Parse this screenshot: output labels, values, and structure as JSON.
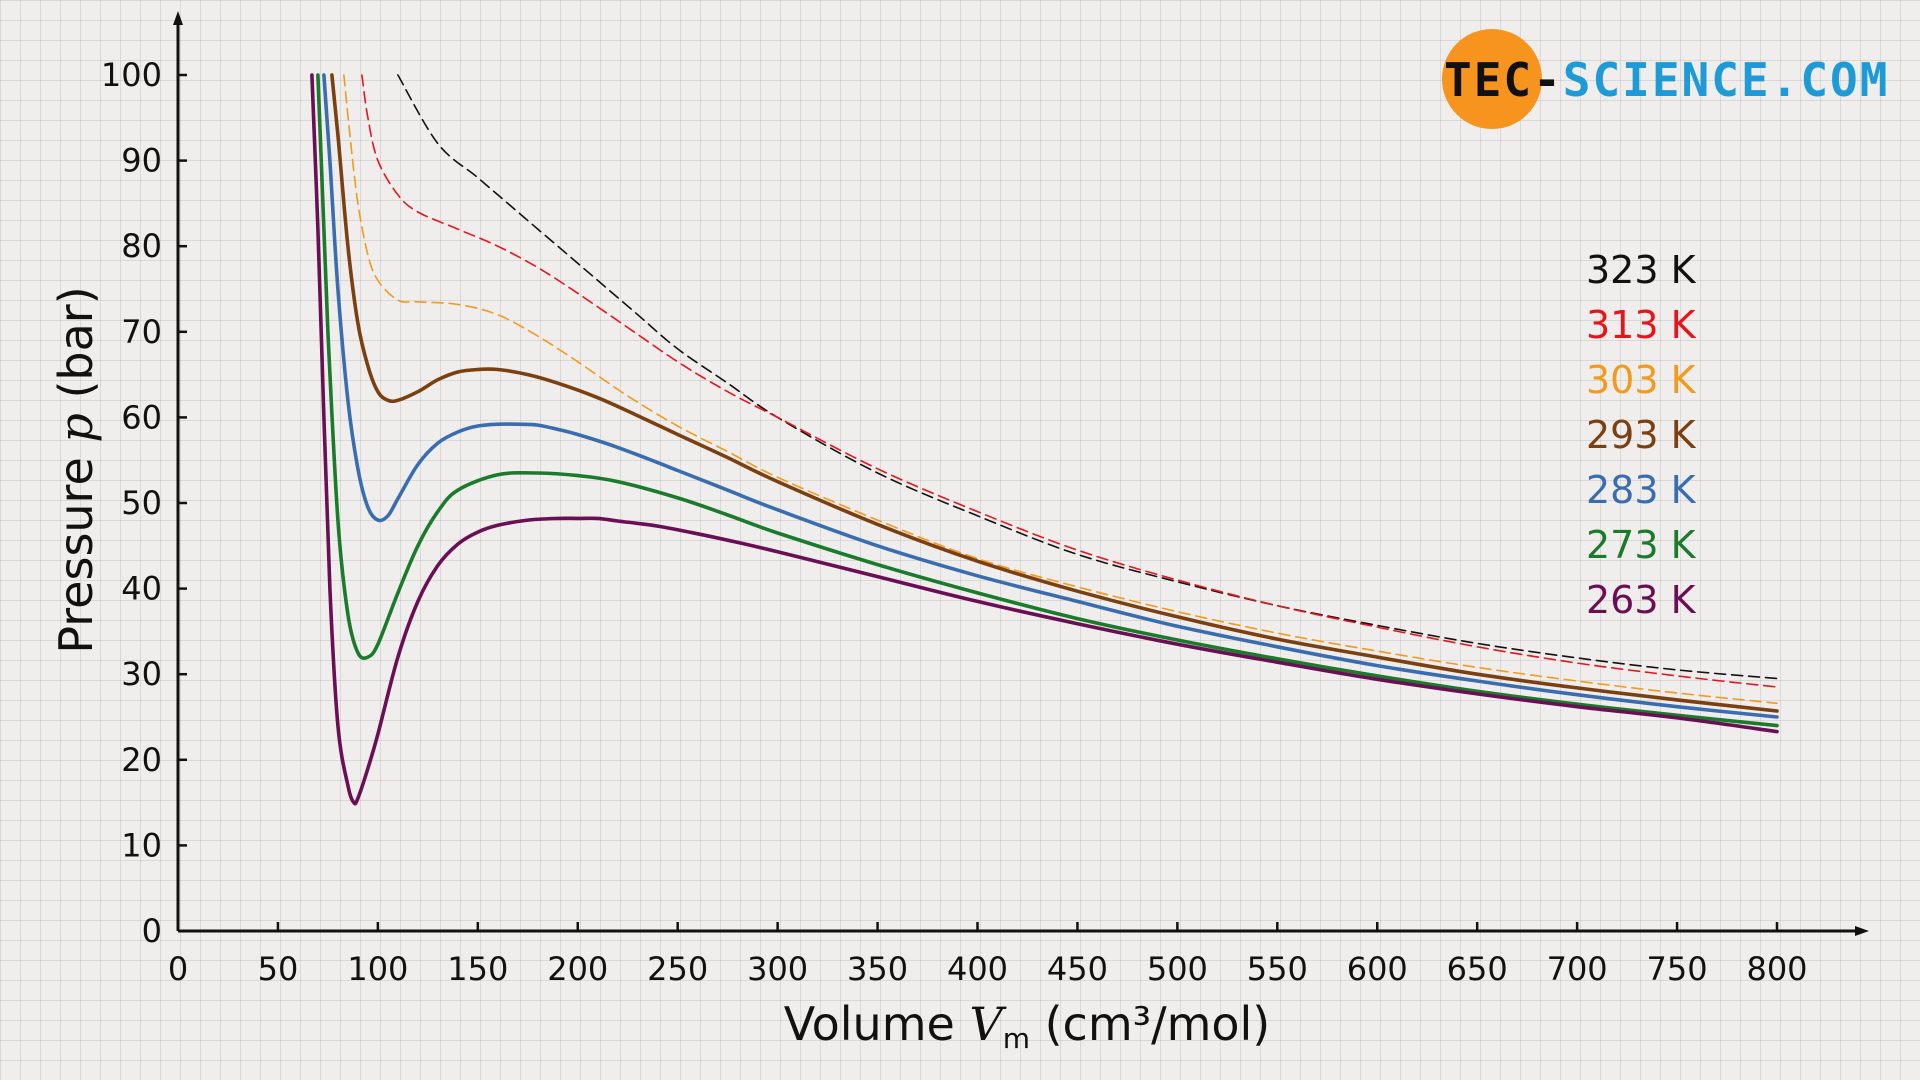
{
  "logo": {
    "text": "tec-science.com",
    "part1": "TEC-",
    "part2": "SCIENCE",
    "part3": ".COM",
    "circle_color": "#f7941d",
    "text_color_1": "#111111",
    "text_color_2": "#1e9bd7"
  },
  "chart_data": {
    "type": "line",
    "title": "",
    "xlabel_prefix": "Volume ",
    "xlabel_var": "V",
    "xlabel_sub": "m",
    "xlabel_unit": " (cm³/mol)",
    "ylabel_prefix": "Pressure ",
    "ylabel_var": "p",
    "ylabel_unit": " (bar)",
    "xlim": [
      0,
      800
    ],
    "ylim": [
      0,
      100
    ],
    "xticks": [
      "0",
      "50",
      "100",
      "150",
      "200",
      "250",
      "300",
      "350",
      "400",
      "450",
      "500",
      "550",
      "600",
      "650",
      "700",
      "750",
      "800"
    ],
    "yticks": [
      "0",
      "10",
      "20",
      "30",
      "40",
      "50",
      "60",
      "70",
      "80",
      "90",
      "100"
    ],
    "grid": true,
    "legend_position": "right",
    "series": [
      {
        "name": "323 K",
        "color": "#111111",
        "dashed": true,
        "x": [
          110,
          130,
          150,
          170,
          190,
          210,
          230,
          250,
          275,
          300,
          350,
          400,
          450,
          500,
          550,
          600,
          650,
          700,
          750,
          800
        ],
        "y": [
          100,
          92,
          88,
          84,
          80,
          76,
          72,
          68,
          64,
          60,
          53.5,
          48.5,
          44,
          40.8,
          38,
          35.7,
          33.6,
          31.9,
          30.5,
          29.5
        ]
      },
      {
        "name": "313 K",
        "color": "#e8141c",
        "dashed": true,
        "x": [
          92,
          95,
          100,
          110,
          120,
          140,
          160,
          180,
          200,
          225,
          250,
          275,
          300,
          350,
          400,
          450,
          500,
          550,
          600,
          650,
          700,
          750,
          800
        ],
        "y": [
          100,
          95,
          90,
          86,
          84,
          82,
          80,
          77.5,
          74.5,
          70.5,
          66.5,
          63,
          60,
          54,
          49,
          44.5,
          41,
          38,
          35.5,
          33.2,
          31.3,
          29.8,
          28.5
        ]
      },
      {
        "name": "303 K",
        "color": "#f39a1d",
        "dashed": true,
        "x": [
          83,
          86,
          90,
          95,
          100,
          110,
          120,
          140,
          160,
          180,
          200,
          225,
          250,
          275,
          300,
          350,
          400,
          450,
          500,
          550,
          600,
          650,
          700,
          750,
          800
        ],
        "y": [
          100,
          93,
          85,
          79,
          76,
          73.7,
          73.5,
          73.2,
          72,
          69.5,
          66.5,
          62.5,
          59,
          56,
          53,
          48,
          43.5,
          40.2,
          37.3,
          34.8,
          32.7,
          30.8,
          29.2,
          27.8,
          26.6
        ]
      },
      {
        "name": "293 K",
        "color": "#7b3f10",
        "dashed": false,
        "x": [
          77,
          80,
          85,
          90,
          95,
          100,
          105,
          110,
          120,
          130,
          140,
          150,
          160,
          175,
          190,
          210,
          230,
          250,
          275,
          300,
          350,
          400,
          450,
          500,
          550,
          600,
          650,
          700,
          750,
          800
        ],
        "y": [
          100,
          93,
          80,
          71,
          66,
          63,
          62,
          62,
          63,
          64.4,
          65.3,
          65.6,
          65.6,
          65,
          64,
          62.3,
          60.2,
          58,
          55.3,
          52.5,
          47.5,
          43.2,
          39.7,
          36.7,
          34.1,
          32,
          30,
          28.4,
          27,
          25.7
        ]
      },
      {
        "name": "283 K",
        "color": "#3a6db0",
        "dashed": false,
        "x": [
          73,
          76,
          80,
          85,
          90,
          95,
          100,
          105,
          110,
          120,
          130,
          140,
          150,
          160,
          170,
          180,
          190,
          200,
          220,
          250,
          275,
          300,
          350,
          400,
          450,
          500,
          550,
          600,
          650,
          700,
          750,
          800
        ],
        "y": [
          100,
          90,
          75,
          62,
          54,
          49.5,
          48,
          48.5,
          50.5,
          54.5,
          57,
          58.3,
          59,
          59.2,
          59.2,
          59.1,
          58.6,
          58,
          56.5,
          53.8,
          51.5,
          49.2,
          45,
          41.5,
          38.5,
          35.6,
          33.2,
          31,
          29.2,
          27.6,
          26.2,
          25
        ]
      },
      {
        "name": "273 K",
        "color": "#1b7a2c",
        "dashed": false,
        "x": [
          70,
          72,
          75,
          80,
          85,
          90,
          95,
          100,
          110,
          120,
          130,
          140,
          160,
          180,
          200,
          220,
          250,
          275,
          300,
          350,
          400,
          450,
          500,
          550,
          600,
          650,
          700,
          750,
          800
        ],
        "y": [
          100,
          88,
          70,
          48,
          37,
          32.5,
          32,
          33.5,
          39.5,
          45,
          49,
          51.5,
          53.3,
          53.5,
          53.2,
          52.5,
          50.6,
          48.6,
          46.5,
          42.8,
          39.5,
          36.5,
          34,
          31.8,
          29.8,
          28,
          26.5,
          25.2,
          24
        ]
      },
      {
        "name": "263 K",
        "color": "#6b0f55",
        "dashed": false,
        "x": [
          67,
          70,
          73,
          76,
          80,
          85,
          88,
          90,
          95,
          100,
          110,
          120,
          130,
          140,
          150,
          160,
          175,
          190,
          200,
          210,
          220,
          240,
          260,
          280,
          300,
          350,
          400,
          450,
          500,
          550,
          600,
          650,
          700,
          750,
          800
        ],
        "y": [
          100,
          82,
          60,
          40,
          24,
          17,
          15,
          15.5,
          19,
          23,
          32,
          38.5,
          42.7,
          45.2,
          46.6,
          47.4,
          48,
          48.2,
          48.2,
          48.2,
          47.9,
          47.3,
          46.4,
          45.4,
          44.3,
          41.4,
          38.5,
          35.9,
          33.5,
          31.4,
          29.4,
          27.7,
          26.2,
          24.9,
          23.3
        ]
      }
    ]
  }
}
